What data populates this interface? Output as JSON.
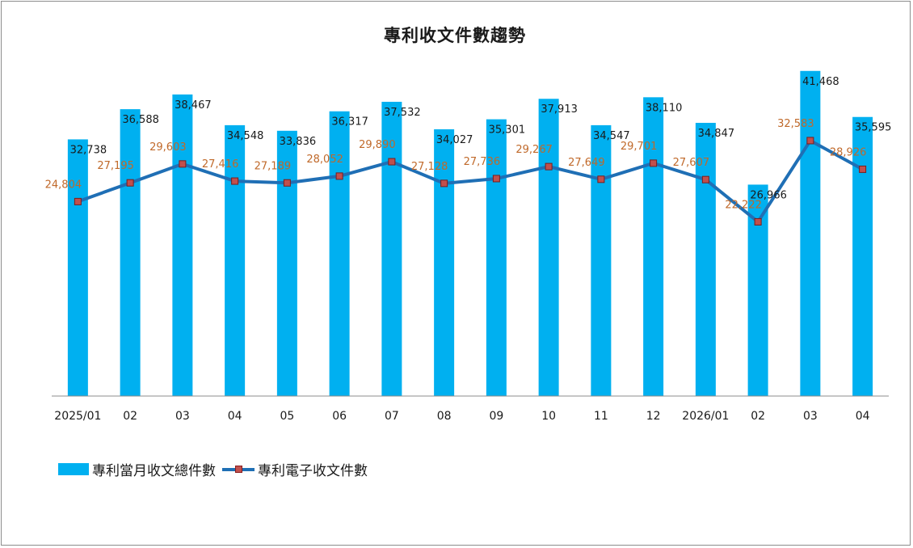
{
  "chart_data": {
    "type": "bar",
    "title": "專利收文件數趨勢",
    "categories": [
      "2025/01",
      "02",
      "03",
      "04",
      "05",
      "06",
      "07",
      "08",
      "09",
      "10",
      "11",
      "12",
      "2026/01",
      "02",
      "03",
      "04"
    ],
    "ylim": [
      0,
      50000
    ],
    "grid": false,
    "legend_position": "bottom-left",
    "series": [
      {
        "name": "專利當月收文總件數",
        "type": "bar",
        "color": "#00b0f0",
        "values": [
          32738,
          36588,
          38467,
          34548,
          33836,
          36317,
          37532,
          34027,
          35301,
          37913,
          34547,
          38110,
          34847,
          26966,
          41468,
          35595
        ],
        "labels": [
          "32,738",
          "36,588",
          "38,467",
          "34,548",
          "33,836",
          "36,317",
          "37,532",
          "34,027",
          "35,301",
          "37,913",
          "34,547",
          "38,110",
          "34,847",
          "26,966",
          "41,468",
          "35,595"
        ]
      },
      {
        "name": "專利電子收文件數",
        "type": "line",
        "color": "#1f6fb5",
        "marker_color": "#c0504d",
        "values": [
          24804,
          27195,
          29603,
          27416,
          27189,
          28052,
          29890,
          27128,
          27736,
          29267,
          27649,
          29701,
          27607,
          22222,
          32583,
          28926
        ],
        "labels": [
          "24,804",
          "27,195",
          "29,603",
          "27,416",
          "27,189",
          "28,052",
          "29,890",
          "27,128",
          "27,736",
          "29,267",
          "27,649",
          "29,701",
          "27,607",
          "22,222",
          "32,583",
          "28,926"
        ]
      }
    ]
  }
}
